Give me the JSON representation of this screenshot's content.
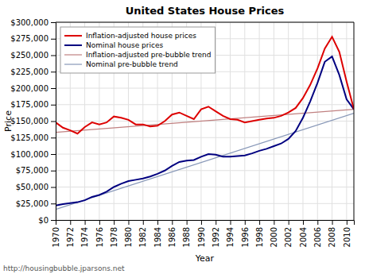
{
  "chart_data": {
    "type": "line",
    "title": "United States House Prices",
    "x_label": "Year",
    "y_label": "Price",
    "annotation": "http://housingbubble.jparsons.net",
    "xlim": [
      1970,
      2011
    ],
    "xticks": [
      1970,
      1972,
      1974,
      1976,
      1978,
      1980,
      1982,
      1984,
      1986,
      1988,
      1990,
      1992,
      1994,
      1996,
      1998,
      2000,
      2002,
      2004,
      2006,
      2008,
      2010
    ],
    "ylim": [
      0,
      300000
    ],
    "yticks": [
      {
        "value": 0,
        "label": "$0"
      },
      {
        "value": 25000,
        "label": "$25,000"
      },
      {
        "value": 50000,
        "label": "$50,000"
      },
      {
        "value": 75000,
        "label": "$75,000"
      },
      {
        "value": 100000,
        "label": "$100,000"
      },
      {
        "value": 125000,
        "label": "$125,000"
      },
      {
        "value": 150000,
        "label": "$150,000"
      },
      {
        "value": 175000,
        "label": "$175,000"
      },
      {
        "value": 200000,
        "label": "$200,000"
      },
      {
        "value": 225000,
        "label": "$225,000"
      },
      {
        "value": 250000,
        "label": "$250,000"
      },
      {
        "value": 275000,
        "label": "$275,000"
      },
      {
        "value": 300000,
        "label": "$300,000"
      }
    ],
    "grid": true,
    "legend": "upper left",
    "series": [
      {
        "name": "Inflation-adjusted house prices",
        "color": "#dd0000",
        "x": [
          1970,
          1971,
          1972,
          1973,
          1974,
          1975,
          1976,
          1977,
          1978,
          1979,
          1980,
          1981,
          1982,
          1983,
          1984,
          1985,
          1986,
          1987,
          1988,
          1989,
          1990,
          1991,
          1992,
          1993,
          1994,
          1995,
          1996,
          1997,
          1998,
          1999,
          2000,
          2001,
          2002,
          2003,
          2004,
          2005,
          2006,
          2007,
          2008,
          2009,
          2010,
          2011
        ],
        "values": [
          148000,
          140000,
          136000,
          131000,
          141000,
          148000,
          145000,
          148000,
          157000,
          155000,
          152000,
          145000,
          145000,
          142000,
          143000,
          150000,
          160000,
          163000,
          158000,
          153000,
          168000,
          172000,
          165000,
          158000,
          153000,
          152000,
          148000,
          150000,
          152000,
          154000,
          155000,
          158000,
          163000,
          170000,
          185000,
          205000,
          230000,
          260000,
          278000,
          255000,
          210000,
          168000
        ]
      },
      {
        "name": "Nominal house prices",
        "color": "#000080",
        "x": [
          1970,
          1971,
          1972,
          1973,
          1974,
          1975,
          1976,
          1977,
          1978,
          1979,
          1980,
          1981,
          1982,
          1983,
          1984,
          1985,
          1986,
          1987,
          1988,
          1989,
          1990,
          1991,
          1992,
          1993,
          1994,
          1995,
          1996,
          1997,
          1998,
          1999,
          2000,
          2001,
          2002,
          2003,
          2004,
          2005,
          2006,
          2007,
          2008,
          2009,
          2010,
          2011
        ],
        "values": [
          22000,
          24000,
          25500,
          27000,
          30000,
          35000,
          38000,
          43000,
          50000,
          55000,
          59000,
          61000,
          63000,
          66000,
          70000,
          75000,
          82000,
          88000,
          90000,
          91000,
          96000,
          100000,
          99000,
          96000,
          96000,
          97000,
          98000,
          101000,
          105000,
          108000,
          112000,
          116000,
          123000,
          135000,
          155000,
          180000,
          208000,
          240000,
          248000,
          220000,
          183000,
          168000
        ]
      },
      {
        "name": "Inflation-adjusted pre-bubble trend",
        "color": "#c08080",
        "x": [
          1970,
          2011
        ],
        "values": [
          133000,
          168000
        ]
      },
      {
        "name": "Nominal pre-bubble trend",
        "color": "#8898b8",
        "x": [
          1970,
          2011
        ],
        "values": [
          16000,
          162000
        ]
      }
    ]
  }
}
